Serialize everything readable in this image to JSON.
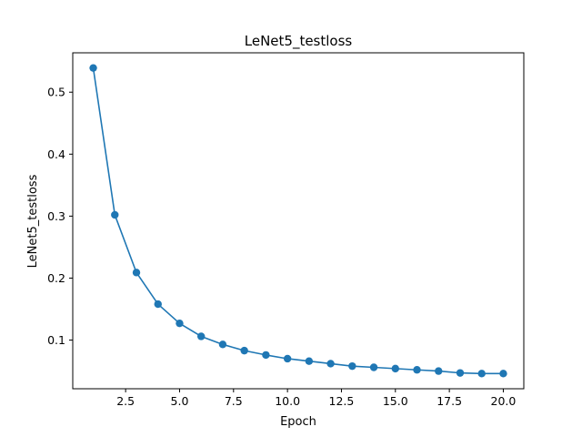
{
  "chart_data": {
    "type": "line",
    "title": "LeNet5_testloss",
    "xlabel": "Epoch",
    "ylabel": "LeNet5_testloss",
    "xlim": [
      0.05,
      20.95
    ],
    "ylim": [
      0.0215,
      0.5635
    ],
    "xticks": [
      2.5,
      5.0,
      7.5,
      10.0,
      12.5,
      15.0,
      17.5,
      20.0
    ],
    "xtick_labels": [
      "2.5",
      "5.0",
      "7.5",
      "10.0",
      "12.5",
      "15.0",
      "17.5",
      "20.0"
    ],
    "yticks": [
      0.1,
      0.2,
      0.3,
      0.4,
      0.5
    ],
    "ytick_labels": [
      "0.1",
      "0.2",
      "0.3",
      "0.4",
      "0.5"
    ],
    "grid": false,
    "legend": false,
    "series": [
      {
        "color": "#1f77b4",
        "marker": "circle",
        "x": [
          1,
          2,
          3,
          4,
          5,
          6,
          7,
          8,
          9,
          10,
          11,
          12,
          13,
          14,
          15,
          16,
          17,
          18,
          19,
          20
        ],
        "y": [
          0.539,
          0.302,
          0.209,
          0.158,
          0.127,
          0.106,
          0.093,
          0.083,
          0.076,
          0.07,
          0.066,
          0.062,
          0.058,
          0.056,
          0.054,
          0.052,
          0.05,
          0.047,
          0.046,
          0.046
        ]
      }
    ]
  }
}
